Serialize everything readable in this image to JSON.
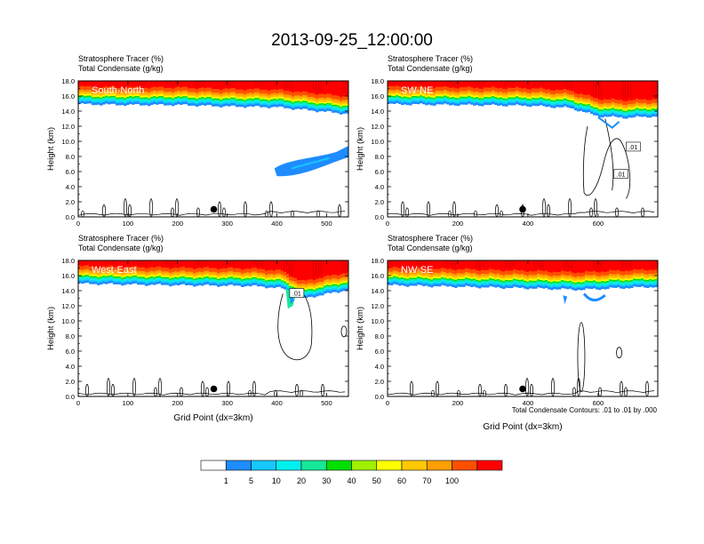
{
  "page_title": "2013-09-25_12:00:00",
  "footnote": "Total Condensate Contours: .01 to .01 by .000",
  "colors": {
    "levels": [
      "#ffffff",
      "#1e8cff",
      "#16c8ff",
      "#00f0f0",
      "#16e898",
      "#00e000",
      "#a0f000",
      "#ffff00",
      "#ffc800",
      "#ffa000",
      "#ff5000",
      "#ff0000"
    ],
    "contour": "#000000",
    "marker": "#000000"
  },
  "chart_data": [
    {
      "type": "heatmap",
      "title": "South-North",
      "left_string_1": "Stratosphere Tracer   (%)",
      "left_string_2": "Total Condensate   (g/kg)",
      "xlabel": "",
      "ylabel": "Height (km)",
      "xlim": [
        0,
        544
      ],
      "ylim": [
        0,
        18
      ],
      "xticks": [
        "0",
        "100",
        "200",
        "300",
        "400",
        "500"
      ],
      "xtick_values": [
        0,
        100,
        200,
        300,
        400,
        500
      ],
      "yticks": [
        "0.0",
        "2.0",
        "4.0",
        "6.0",
        "8.0",
        "10.0",
        "12.0",
        "14.0",
        "16.0",
        "18.0"
      ],
      "tracer_base_km": [
        [
          0,
          15.0
        ],
        [
          100,
          14.9
        ],
        [
          200,
          14.9
        ],
        [
          300,
          14.7
        ],
        [
          400,
          14.6
        ],
        [
          544,
          13.7
        ]
      ],
      "marker_x": 273,
      "marker_y_km": 1.0
    },
    {
      "type": "heatmap",
      "title": "SW-NE",
      "left_string_1": "Stratosphere Tracer   (%)",
      "left_string_2": "Total Condensate   (g/kg)",
      "xlabel": "",
      "ylabel": "Height (km)",
      "xlim": [
        0,
        770
      ],
      "ylim": [
        0,
        18
      ],
      "xticks": [
        "0",
        "200",
        "400",
        "600"
      ],
      "xtick_values": [
        0,
        200,
        400,
        600
      ],
      "yticks": [
        "0.0",
        "2.0",
        "4.0",
        "6.0",
        "8.0",
        "10.0",
        "12.0",
        "14.0",
        "16.0",
        "18.0"
      ],
      "tracer_base_km": [
        [
          0,
          15.0
        ],
        [
          200,
          14.9
        ],
        [
          400,
          14.8
        ],
        [
          520,
          14.5
        ],
        [
          600,
          13.4
        ],
        [
          680,
          13.2
        ],
        [
          770,
          13.4
        ]
      ],
      "contour_labels": [
        ".01",
        ".01"
      ],
      "marker_x": 385,
      "marker_y_km": 1.0
    },
    {
      "type": "heatmap",
      "title": "West-East",
      "left_string_1": "Stratosphere Tracer   (%)",
      "left_string_2": "Total Condensate   (g/kg)",
      "xlabel": "Grid Point (dx=3km)",
      "ylabel": "Height (km)",
      "xlim": [
        0,
        544
      ],
      "ylim": [
        0,
        18
      ],
      "xticks": [
        "0",
        "100",
        "200",
        "300",
        "400",
        "500"
      ],
      "xtick_values": [
        0,
        100,
        200,
        300,
        400,
        500
      ],
      "yticks": [
        "0.0",
        "2.0",
        "4.0",
        "6.0",
        "8.0",
        "10.0",
        "12.0",
        "14.0",
        "16.0",
        "18.0"
      ],
      "tracer_base_km": [
        [
          0,
          15.0
        ],
        [
          200,
          14.8
        ],
        [
          350,
          14.7
        ],
        [
          410,
          14.4
        ],
        [
          450,
          13.0
        ],
        [
          544,
          14.2
        ]
      ],
      "contour_labels": [
        ".01"
      ],
      "marker_x": 273,
      "marker_y_km": 1.0
    },
    {
      "type": "heatmap",
      "title": "NW-SE",
      "left_string_1": "Stratosphere Tracer   (%)",
      "left_string_2": "Total Condensate   (g/kg)",
      "xlabel": "Grid Point (dx=3km)",
      "ylabel": "Height (km)",
      "xlim": [
        0,
        770
      ],
      "ylim": [
        0,
        18
      ],
      "xticks": [
        "0",
        "200",
        "400",
        "600"
      ],
      "xtick_values": [
        0,
        200,
        400,
        600
      ],
      "yticks": [
        "0.0",
        "2.0",
        "4.0",
        "6.0",
        "8.0",
        "10.0",
        "12.0",
        "14.0",
        "16.0",
        "18.0"
      ],
      "tracer_base_km": [
        [
          0,
          14.8
        ],
        [
          200,
          14.6
        ],
        [
          400,
          14.4
        ],
        [
          550,
          14.2
        ],
        [
          650,
          14.4
        ],
        [
          770,
          14.6
        ]
      ],
      "marker_x": 385,
      "marker_y_km": 1.0
    }
  ],
  "colorbar": {
    "labels": [
      "1",
      "5",
      "10",
      "20",
      "30",
      "40",
      "50",
      "60",
      "70",
      "100"
    ]
  }
}
